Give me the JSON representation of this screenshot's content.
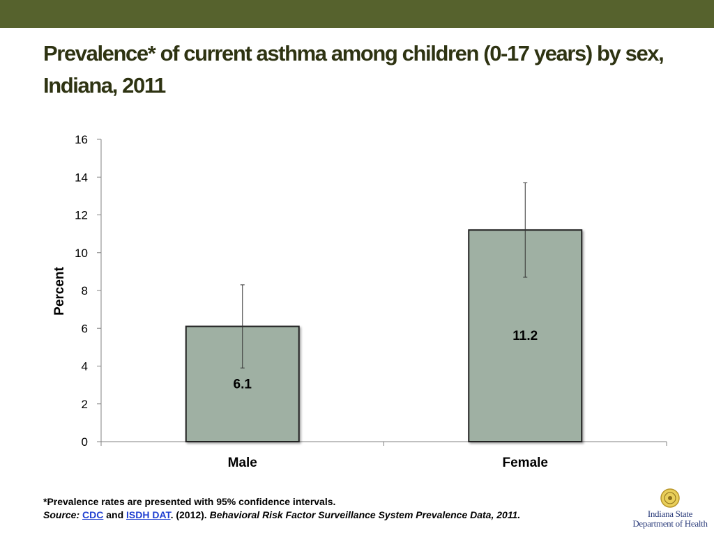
{
  "slide": {
    "title": "Prevalence* of current asthma among children (0-17 years) by sex, Indiana, 2011"
  },
  "chart_data": {
    "type": "bar",
    "categories": [
      "Male",
      "Female"
    ],
    "values": [
      6.1,
      11.2
    ],
    "data_labels": [
      "6.1",
      "11.2"
    ],
    "error_bars": [
      {
        "low": 3.9,
        "high": 8.3
      },
      {
        "low": 8.7,
        "high": 13.7
      }
    ],
    "title": "",
    "xlabel": "",
    "ylabel": "Percent",
    "ylim": [
      0,
      16
    ],
    "yticks": [
      0,
      2,
      4,
      6,
      8,
      10,
      12,
      14,
      16
    ],
    "grid": false,
    "legend": "none",
    "bar_color": "#9fb0a3",
    "bar_border": "#222222"
  },
  "footnote": {
    "note": "*Prevalence rates are presented with 95% confidence intervals.",
    "source_label": "Source:",
    "link_cdc": "CDC",
    "and_text": "and",
    "link_isdh": "ISDH DAT",
    "year_text": ". (2012).",
    "citation": "Behavioral Risk Factor Surveillance System Prevalence Data, 2011."
  },
  "logo": {
    "line1": "Indiana State",
    "line2": "Department of Health",
    "icon": "state-seal-icon"
  },
  "colors": {
    "header_band": "#56622d",
    "title_text": "#2e3312",
    "link": "#1f3fd1"
  }
}
